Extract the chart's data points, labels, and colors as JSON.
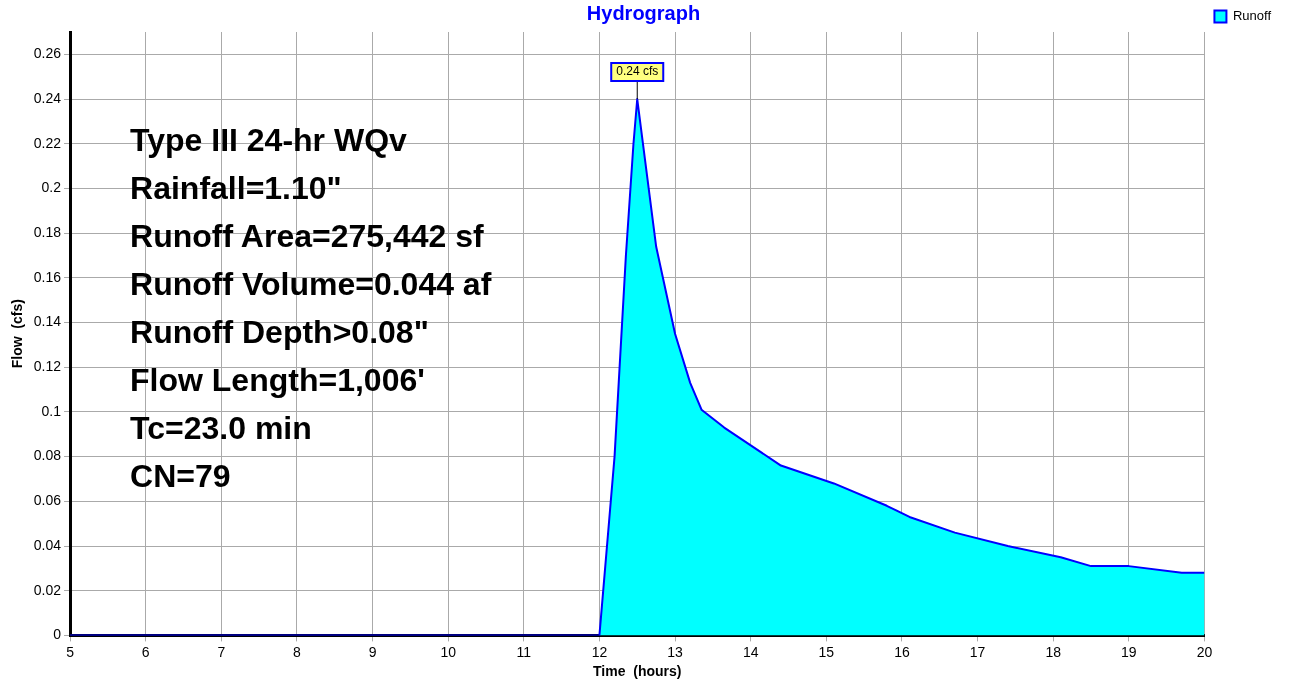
{
  "chart_data": {
    "type": "area",
    "title": "Hydrograph",
    "xlabel": "Time  (hours)",
    "ylabel": "Flow  (cfs)",
    "x": [
      5,
      12,
      12.2,
      12.35,
      12.45,
      12.5,
      12.75,
      13,
      13.2,
      13.35,
      13.65,
      14.4,
      15.1,
      15.8,
      16.1,
      16.7,
      17.4,
      18.1,
      18.5,
      19,
      19.7,
      20
    ],
    "series": [
      {
        "name": "Runoff",
        "color": "#00ffff",
        "values": [
          0,
          0,
          0.08,
          0.17,
          0.22,
          0.24,
          0.174,
          0.135,
          0.113,
          0.101,
          0.093,
          0.076,
          0.068,
          0.058,
          0.053,
          0.046,
          0.04,
          0.035,
          0.031,
          0.031,
          0.028,
          0.028
        ],
        "value_labels": [
          null,
          null,
          null,
          null,
          null,
          "0.24 cfs",
          null,
          null,
          null,
          null,
          null,
          null,
          null,
          null,
          null,
          null,
          null,
          null,
          null,
          null,
          null,
          null
        ]
      }
    ],
    "xlim": [
      5,
      20
    ],
    "xticks": [
      5,
      6,
      7,
      8,
      9,
      10,
      11,
      12,
      13,
      14,
      15,
      16,
      17,
      18,
      19,
      20
    ],
    "ylim": [
      0,
      0.27
    ],
    "yticks": [
      0,
      0.02,
      0.04,
      0.06,
      0.08,
      0.1,
      0.12,
      0.14,
      0.16,
      0.18,
      0.2,
      0.22,
      0.24,
      0.26
    ],
    "grid": true,
    "legend": "top right",
    "marker": "none",
    "line_style": "solid",
    "annotations": [
      "Type III 24-hr WQv",
      "Rainfall=1.10\"",
      "Runoff Area=275,442 sf",
      "Runoff Volume=0.044 af",
      "Runoff Depth>0.08\"",
      "Flow Length=1,006'",
      "Tc=23.0 min",
      "CN=79"
    ]
  }
}
